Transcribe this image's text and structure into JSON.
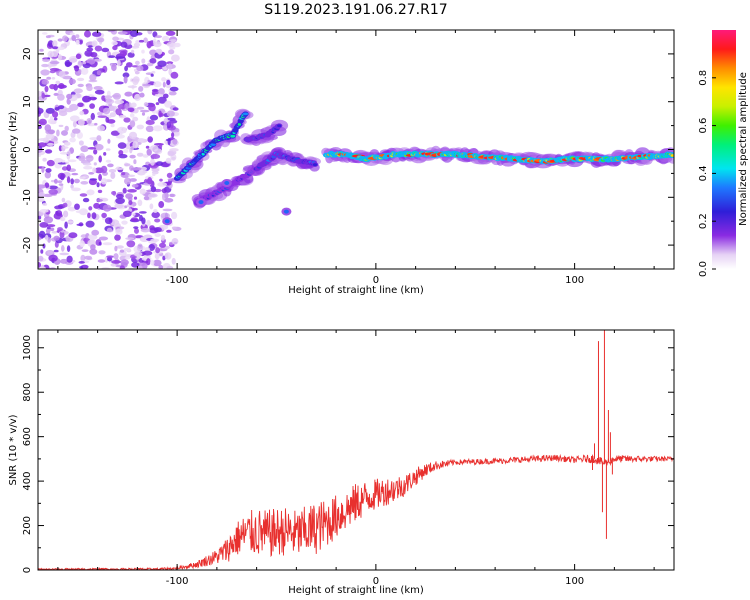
{
  "chart_data": [
    {
      "type": "heatmap",
      "title": "S119.2023.191.06.27.R17",
      "xlabel": "Height of straight line (km)",
      "ylabel": "Frequency (Hz)",
      "xlim": [
        -170,
        150
      ],
      "ylim": [
        -25,
        25
      ],
      "xticks": [
        -100,
        0,
        100
      ],
      "yticks": [
        -20,
        -10,
        0,
        10,
        20
      ],
      "colorbar": {
        "label": "Normalized spectral amplitude",
        "range": [
          0,
          1
        ],
        "ticks": [
          0.0,
          0.2,
          0.4,
          0.6,
          0.8
        ],
        "colormap": "rainbow: white-purple-blue-cyan-green-yellow-red-magenta"
      },
      "features": [
        {
          "kind": "noise",
          "x_range": [
            -170,
            -100
          ],
          "y_range": [
            -25,
            25
          ],
          "amplitude": 0.08
        },
        {
          "kind": "ridge",
          "points": [
            [
              -100,
              -6
            ],
            [
              -90,
              -2
            ],
            [
              -80,
              2
            ],
            [
              -72,
              3
            ],
            [
              -68,
              6
            ],
            [
              -65,
              8
            ]
          ],
          "amplitude": 0.45
        },
        {
          "kind": "ridge",
          "points": [
            [
              -90,
              -11
            ],
            [
              -75,
              -8
            ],
            [
              -60,
              -4
            ],
            [
              -48,
              0
            ]
          ],
          "amplitude": 0.25
        },
        {
          "kind": "ridge",
          "points": [
            [
              -65,
              2
            ],
            [
              -55,
              3
            ],
            [
              -48,
              5
            ]
          ],
          "amplitude": 0.3
        },
        {
          "kind": "ridge",
          "points": [
            [
              -60,
              -4
            ],
            [
              -50,
              -1
            ],
            [
              -42,
              -2
            ],
            [
              -30,
              -3
            ]
          ],
          "amplitude": 0.3
        },
        {
          "kind": "ridge",
          "points": [
            [
              -25,
              -1
            ],
            [
              -15,
              -1
            ],
            [
              -5,
              -2
            ],
            [
              10,
              -1
            ],
            [
              40,
              -1
            ],
            [
              70,
              -2
            ],
            [
              85,
              -2.5
            ],
            [
              95,
              -2
            ],
            [
              120,
              -2
            ],
            [
              150,
              -1
            ]
          ],
          "amplitude": 0.7
        },
        {
          "kind": "blob",
          "points": [
            [
              -45,
              -13
            ],
            [
              -105,
              -15
            ],
            [
              -88,
              -11
            ],
            [
              -75,
              -7
            ]
          ],
          "amplitude": 0.2
        }
      ]
    },
    {
      "type": "line",
      "xlabel": "Height of straight line (km)",
      "ylabel": "SNR (10 * v/v)",
      "xlim": [
        -170,
        150
      ],
      "ylim": [
        0,
        1080
      ],
      "xticks": [
        -100,
        0,
        100
      ],
      "yticks": [
        0,
        200,
        400,
        600,
        800,
        1000
      ],
      "color": "#e8302e",
      "profile": [
        [
          -170,
          2
        ],
        [
          -110,
          4
        ],
        [
          -100,
          8
        ],
        [
          -90,
          25
        ],
        [
          -80,
          60
        ],
        [
          -75,
          90
        ],
        [
          -70,
          140
        ],
        [
          -65,
          165
        ],
        [
          -60,
          170
        ],
        [
          -55,
          160
        ],
        [
          -50,
          170
        ],
        [
          -45,
          175
        ],
        [
          -40,
          160
        ],
        [
          -35,
          175
        ],
        [
          -30,
          190
        ],
        [
          -25,
          210
        ],
        [
          -20,
          240
        ],
        [
          -15,
          270
        ],
        [
          -10,
          300
        ],
        [
          -5,
          325
        ],
        [
          0,
          340
        ],
        [
          5,
          355
        ],
        [
          10,
          365
        ],
        [
          15,
          385
        ],
        [
          20,
          420
        ],
        [
          25,
          450
        ],
        [
          30,
          470
        ],
        [
          40,
          485
        ],
        [
          60,
          490
        ],
        [
          80,
          500
        ],
        [
          90,
          505
        ],
        [
          100,
          495
        ],
        [
          105,
          500
        ],
        [
          110,
          500
        ],
        [
          115,
          480
        ],
        [
          120,
          500
        ],
        [
          150,
          500
        ]
      ],
      "noise_band": [
        [
          -100,
          5
        ],
        [
          -90,
          15
        ],
        [
          -80,
          35
        ],
        [
          -70,
          80
        ],
        [
          -60,
          110
        ],
        [
          -50,
          110
        ],
        [
          -40,
          110
        ],
        [
          -30,
          120
        ],
        [
          -20,
          100
        ],
        [
          -10,
          90
        ],
        [
          0,
          70
        ],
        [
          10,
          60
        ],
        [
          20,
          40
        ],
        [
          30,
          20
        ],
        [
          40,
          12
        ],
        [
          80,
          14
        ],
        [
          100,
          14
        ],
        [
          110,
          20
        ],
        [
          150,
          10
        ]
      ],
      "spikes": [
        {
          "x": 109,
          "y": 450
        },
        {
          "x": 110,
          "y": 570
        },
        {
          "x": 112,
          "y": 1030
        },
        {
          "x": 114,
          "y": 260
        },
        {
          "x": 115,
          "y": 1080
        },
        {
          "x": 116,
          "y": 140
        },
        {
          "x": 117,
          "y": 720
        },
        {
          "x": 118,
          "y": 620
        },
        {
          "x": 119,
          "y": 430
        }
      ]
    }
  ]
}
